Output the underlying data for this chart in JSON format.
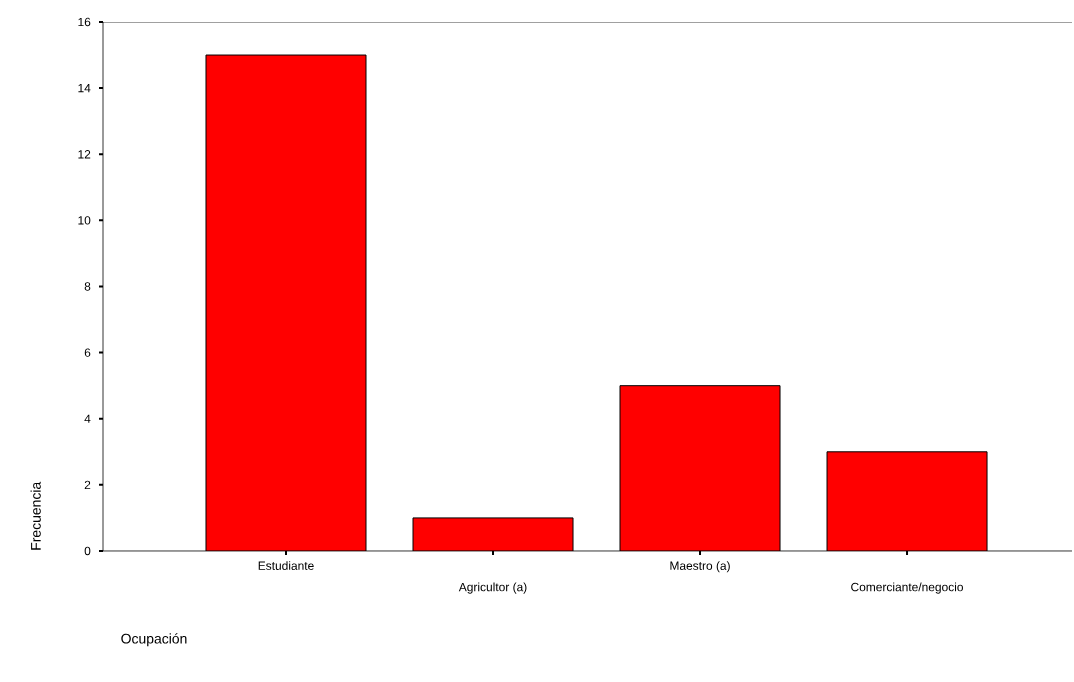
{
  "chart_data": {
    "type": "bar",
    "categories": [
      "Estudiante",
      "Agricultor (a)",
      "Maestro (a)",
      "Comerciante/negocio"
    ],
    "values": [
      15,
      1,
      5,
      3
    ],
    "color": "#ff0000",
    "xlabel": "Ocupación",
    "ylabel": "Frecuencia",
    "ylim": [
      0,
      16
    ],
    "yticks": [
      0,
      2,
      4,
      6,
      8,
      10,
      12,
      14,
      16
    ]
  }
}
